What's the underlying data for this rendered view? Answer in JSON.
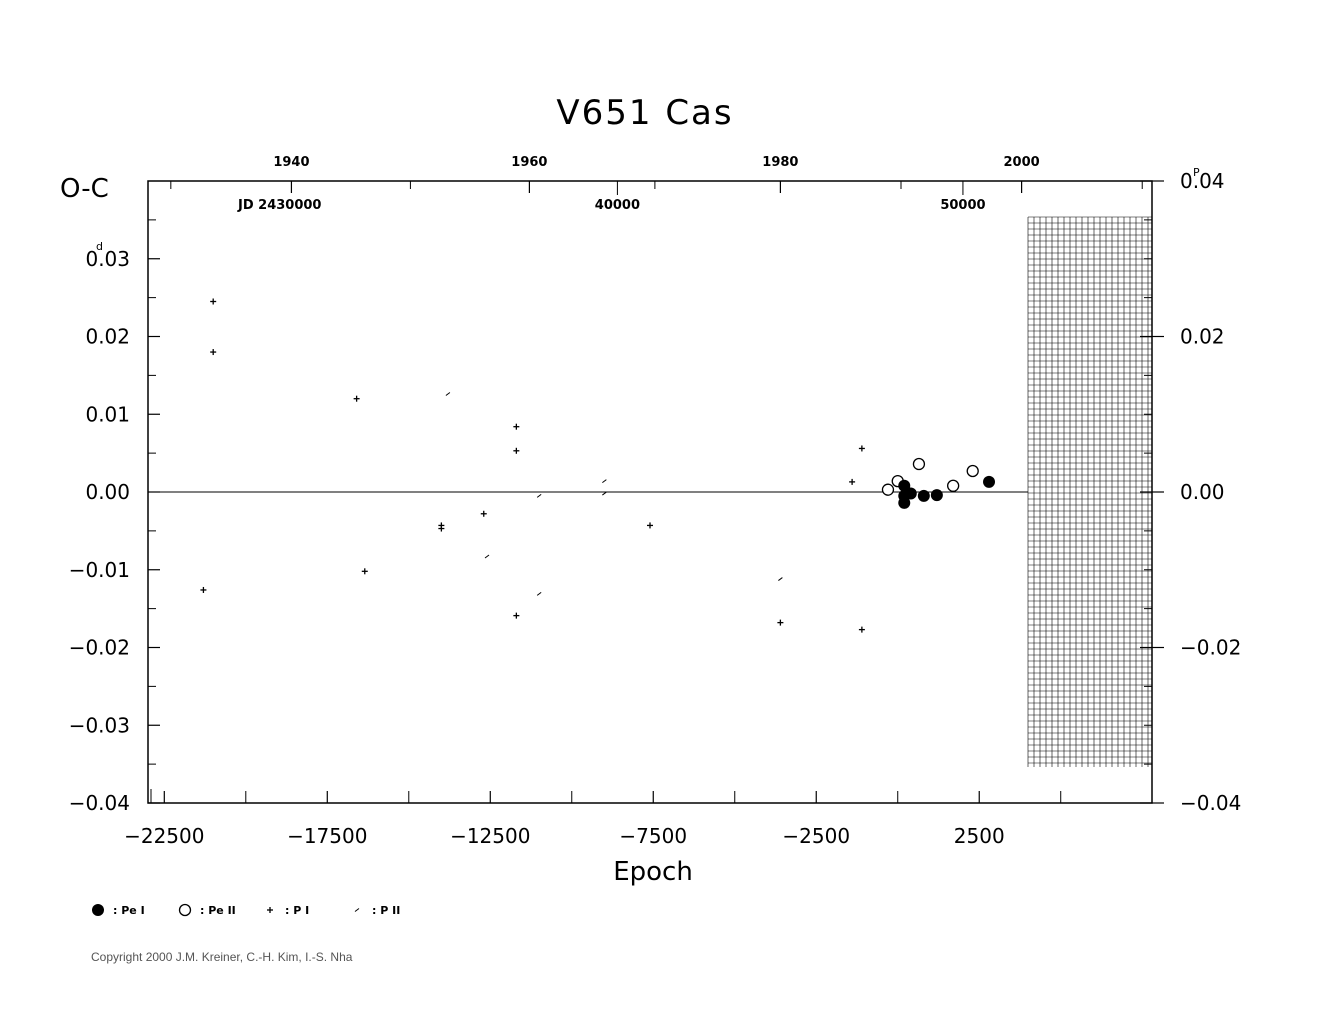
{
  "chart_data": {
    "type": "scatter",
    "title": "V651  Cas",
    "xlabel": "Epoch",
    "ylabel": "O-C",
    "ylabel_unit": "d",
    "right_unit": "P",
    "xlim": [
      -23000,
      7800
    ],
    "ylim": [
      -0.04,
      0.04
    ],
    "x_ticks": [
      -22500,
      -17500,
      -12500,
      -7500,
      -2500,
      2500
    ],
    "x_tick_labels": [
      "−22500",
      "−17500",
      "−12500",
      "−7500",
      "−2500",
      "2500"
    ],
    "y_ticks": [
      -0.04,
      -0.03,
      -0.02,
      -0.01,
      0.0,
      0.01,
      0.02,
      0.03
    ],
    "y_tick_labels": [
      "−0.04",
      "−0.03",
      "−0.02",
      "−0.01",
      "0.00",
      "0.01",
      "0.02",
      "0.03"
    ],
    "top_year_ticks": [
      1940,
      1960,
      1980,
      2000
    ],
    "top_year_epochs": [
      -18600,
      -11300,
      -3600,
      3800
    ],
    "top_jd_label": "JD 2430000",
    "top_jd_ticks": [
      "40000",
      "50000"
    ],
    "top_jd_epochs": [
      -8600,
      2000
    ],
    "right_ticks": [
      -0.04,
      -0.02,
      0.0,
      0.02,
      0.04
    ],
    "right_tick_labels": [
      "−0.04",
      "−0.02",
      "0.00",
      "0.02",
      "0.04"
    ],
    "grid": false,
    "series": [
      {
        "name": "Pe I",
        "marker": "filled-circle",
        "points": [
          [
            200,
            0.0008
          ],
          [
            200,
            -0.0005
          ],
          [
            200,
            -0.0014
          ],
          [
            400,
            -0.0002
          ],
          [
            800,
            -0.0005
          ],
          [
            1200,
            -0.0004
          ],
          [
            2800,
            0.0013
          ]
        ]
      },
      {
        "name": "Pe II",
        "marker": "open-circle",
        "points": [
          [
            -300,
            0.0003
          ],
          [
            0,
            0.0014
          ],
          [
            650,
            0.0036
          ],
          [
            1700,
            0.0008
          ],
          [
            2300,
            0.0027
          ]
        ]
      },
      {
        "name": "P I",
        "marker": "plus",
        "points": [
          [
            -21000,
            0.0245
          ],
          [
            -21000,
            0.018
          ],
          [
            -21300,
            -0.0126
          ],
          [
            -16600,
            0.012
          ],
          [
            -16350,
            -0.0102
          ],
          [
            -14000,
            -0.0043
          ],
          [
            -14000,
            -0.0047
          ],
          [
            -11700,
            0.0084
          ],
          [
            -11700,
            0.0053
          ],
          [
            -11700,
            -0.0159
          ],
          [
            -12700,
            -0.0028
          ],
          [
            -7600,
            -0.0043
          ],
          [
            -3600,
            -0.0168
          ],
          [
            -1400,
            0.0013
          ],
          [
            -1100,
            0.0056
          ],
          [
            -1100,
            -0.0177
          ]
        ]
      },
      {
        "name": "P II",
        "marker": "small",
        "points": [
          [
            -13800,
            0.0126
          ],
          [
            -12600,
            -0.0083
          ],
          [
            -11000,
            -0.0005
          ],
          [
            -11000,
            -0.0131
          ],
          [
            -9000,
            0.0014
          ],
          [
            -9000,
            -0.0002
          ],
          [
            -3600,
            -0.0112
          ]
        ]
      }
    ],
    "legend": [
      {
        "symbol": "filled-circle",
        "label": ": Pe I"
      },
      {
        "symbol": "open-circle",
        "label": ": Pe II"
      },
      {
        "symbol": "plus",
        "label": ": P I"
      },
      {
        "symbol": "small",
        "label": ": P II"
      }
    ],
    "legend_position": "bottom-left"
  },
  "footer": {
    "copyright": "Copyright 2000 J.M. Kreiner, C.-H. Kim, I.-S. Nha"
  }
}
